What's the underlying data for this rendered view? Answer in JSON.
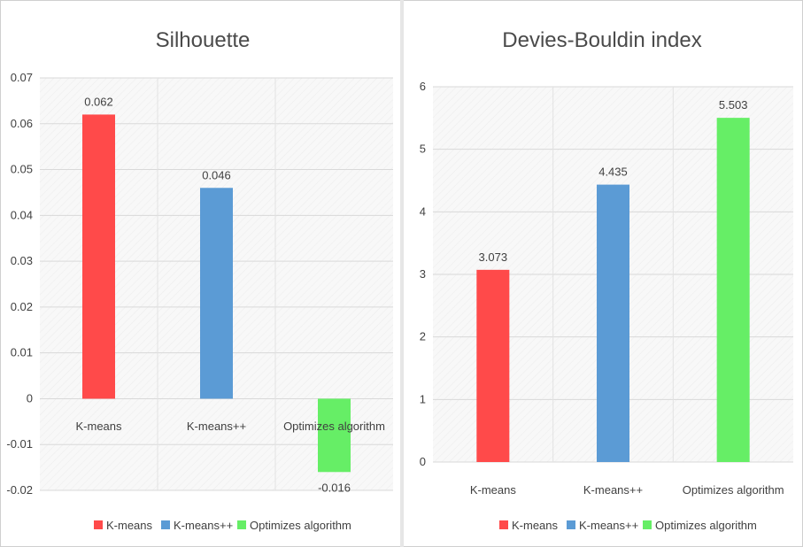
{
  "chart_data": [
    {
      "type": "bar",
      "title": "Silhouette",
      "categories": [
        "K-means",
        "K-means++",
        "Optimizes algorithm"
      ],
      "values": [
        0.062,
        0.046,
        -0.016
      ],
      "value_labels": [
        "0.062",
        "0.046",
        "-0.016"
      ],
      "colors": [
        "#ff4a4a",
        "#5b9bd5",
        "#66ee66"
      ],
      "ylim": [
        -0.02,
        0.07
      ],
      "yticks": [
        -0.02,
        -0.01,
        0,
        0.01,
        0.02,
        0.03,
        0.04,
        0.05,
        0.06,
        0.07
      ],
      "ytick_labels": [
        "-0.02",
        "-0.01",
        "0",
        "0.01",
        "0.02",
        "0.03",
        "0.04",
        "0.05",
        "0.06",
        "0.07"
      ],
      "legend": [
        "K-means",
        "K-means++",
        "Optimizes algorithm"
      ],
      "legend_position": "bottom",
      "grid": true
    },
    {
      "type": "bar",
      "title": "Devies-Bouldin index",
      "categories": [
        "K-means",
        "K-means++",
        "Optimizes algorithm"
      ],
      "values": [
        3.073,
        4.435,
        5.503
      ],
      "value_labels": [
        "3.073",
        "4.435",
        "5.503"
      ],
      "colors": [
        "#ff4a4a",
        "#5b9bd5",
        "#66ee66"
      ],
      "ylim": [
        0,
        6
      ],
      "yticks": [
        0,
        1,
        2,
        3,
        4,
        5,
        6
      ],
      "ytick_labels": [
        "0",
        "1",
        "2",
        "3",
        "4",
        "5",
        "6"
      ],
      "legend": [
        "K-means",
        "K-means++",
        "Optimizes algorithm"
      ],
      "legend_position": "bottom",
      "grid": true
    }
  ]
}
